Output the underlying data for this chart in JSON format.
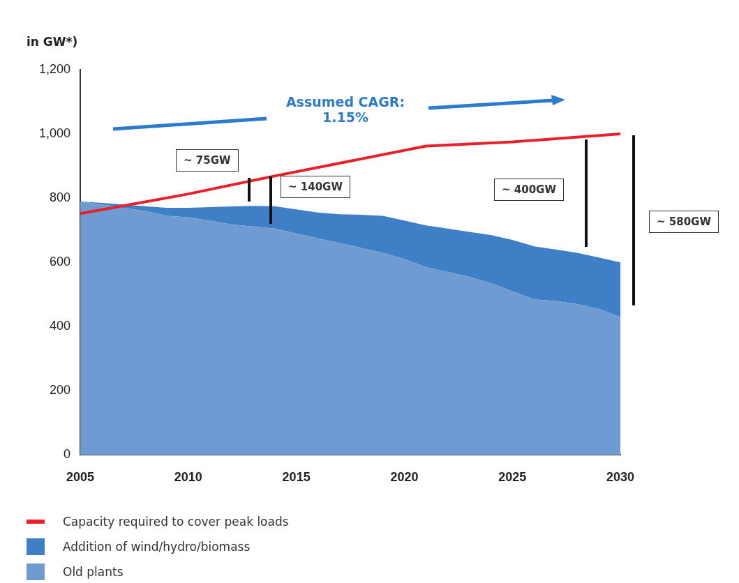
{
  "chart_data": {
    "type": "area",
    "ylabel": "in GW*)",
    "stacked": true,
    "x": [
      2005,
      2006,
      2007,
      2008,
      2009,
      2010,
      2011,
      2012,
      2013,
      2014,
      2015,
      2016,
      2017,
      2018,
      2019,
      2020,
      2021,
      2022,
      2023,
      2024,
      2025,
      2026,
      2027,
      2028,
      2029,
      2030
    ],
    "series": [
      {
        "name": "Old plants",
        "color": "#6f9bd2",
        "values": [
          790,
          780,
          770,
          760,
          745,
          740,
          730,
          718,
          712,
          705,
          690,
          675,
          660,
          645,
          630,
          610,
          585,
          570,
          555,
          535,
          510,
          485,
          480,
          470,
          455,
          430
        ]
      },
      {
        "name": "Addition of wind/hydro/biomass",
        "color": "#3f7fc6",
        "values": [
          0,
          5,
          10,
          15,
          25,
          30,
          42,
          56,
          64,
          70,
          75,
          80,
          90,
          103,
          115,
          120,
          130,
          135,
          140,
          150,
          160,
          165,
          160,
          160,
          160,
          170
        ]
      },
      {
        "name": "Capacity required to cover peak loads",
        "type": "line",
        "color": "#e8202a",
        "x": [
          2005,
          2010,
          2014,
          2021,
          2025,
          2030
        ],
        "values": [
          752,
          813,
          869,
          962,
          975,
          1000
        ]
      }
    ],
    "xlim": [
      2005,
      2030
    ],
    "xticks": [
      2005,
      2010,
      2015,
      2020,
      2025,
      2030
    ],
    "ylim": [
      0,
      1200
    ],
    "yticks": [
      0,
      {
        "value": 200,
        "label": "200"
      },
      {
        "value": 400,
        "label": "400"
      },
      {
        "value": 600,
        "label": "600"
      },
      {
        "value": 800,
        "label": "800"
      },
      {
        "value": 1000,
        "label": "1,000"
      },
      {
        "value": 1200,
        "label": "1,200"
      }
    ],
    "grid": false,
    "legend": "bottom",
    "marker": "none",
    "annotations": [
      "Assumed CAGR: 1.15%",
      "~ 75GW",
      "~ 140GW",
      "~ 400GW",
      "~ 580GW"
    ]
  }
}
